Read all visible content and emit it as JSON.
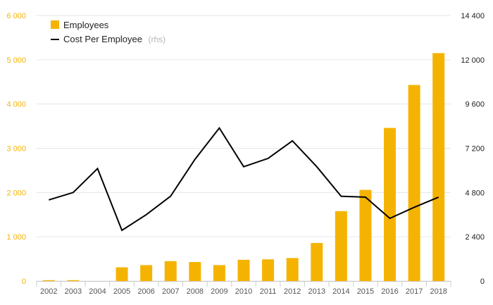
{
  "chart_data": {
    "type": "bar",
    "categories": [
      "2002",
      "2003",
      "2004",
      "2005",
      "2006",
      "2007",
      "2008",
      "2009",
      "2010",
      "2011",
      "2012",
      "2013",
      "2014",
      "2015",
      "2016",
      "2017",
      "2018"
    ],
    "series": [
      {
        "name": "Employees",
        "type": "bar",
        "axis": "left",
        "color": "#f5b301",
        "values": [
          20,
          20,
          0,
          310,
          360,
          450,
          430,
          360,
          480,
          490,
          520,
          860,
          1580,
          2060,
          3460,
          4430,
          5150
        ]
      },
      {
        "name": "Cost Per Employee",
        "type": "line",
        "axis": "right",
        "color": "#000000",
        "values": [
          4400,
          4800,
          6100,
          2750,
          3600,
          4600,
          6600,
          8300,
          6200,
          6650,
          7600,
          6200,
          4600,
          4550,
          3400,
          4000,
          4550
        ]
      }
    ],
    "legend": {
      "position": "top-left",
      "items": [
        {
          "label": "Employees",
          "suffix": ""
        },
        {
          "label": "Cost Per Employee",
          "suffix": "(rhs)"
        }
      ]
    },
    "y_left": {
      "lim": [
        0,
        6000
      ],
      "ticks": [
        0,
        1000,
        2000,
        3000,
        4000,
        5000,
        6000
      ],
      "tick_labels": [
        "0",
        "1 000",
        "2 000",
        "3 000",
        "4 000",
        "5 000",
        "6 000"
      ],
      "color": "#f5b301"
    },
    "y_right": {
      "lim": [
        0,
        14400
      ],
      "ticks": [
        0,
        2400,
        4800,
        7200,
        9600,
        12000,
        14400
      ],
      "tick_labels": [
        "0",
        "2 400",
        "4 800",
        "7 200",
        "9 600",
        "12 000",
        "14 400"
      ],
      "color": "#222222"
    },
    "grid": true,
    "title": "",
    "xlabel": "",
    "ylabel": ""
  }
}
